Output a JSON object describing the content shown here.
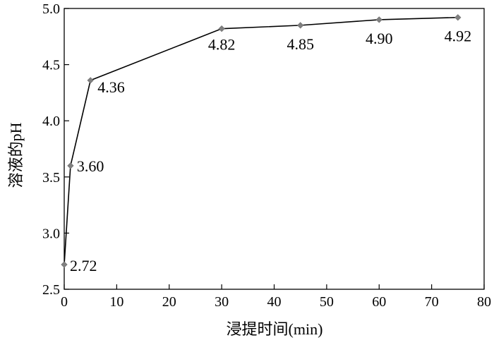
{
  "chart_data": {
    "type": "line",
    "title": "",
    "xlabel": "浸提时间(min)",
    "ylabel": "溶液的pH",
    "xlim": [
      0,
      80
    ],
    "ylim": [
      2.5,
      5.0
    ],
    "xticks": [
      "0",
      "10",
      "20",
      "30",
      "40",
      "50",
      "60",
      "70",
      "80"
    ],
    "yticks": [
      "2.5",
      "3.0",
      "3.5",
      "4.0",
      "4.5",
      "5.0"
    ],
    "grid": false,
    "legend": "none",
    "colors": {
      "line": "#000000",
      "marker": "#808080"
    },
    "series": [
      {
        "x": [
          0,
          1.2,
          5,
          30,
          45,
          60,
          75
        ],
        "y": [
          2.72,
          3.6,
          4.36,
          4.82,
          4.85,
          4.9,
          4.92
        ],
        "labels": [
          "2.72",
          "3.60",
          "4.36",
          "4.82",
          "4.85",
          "4.90",
          "4.92"
        ]
      }
    ]
  }
}
